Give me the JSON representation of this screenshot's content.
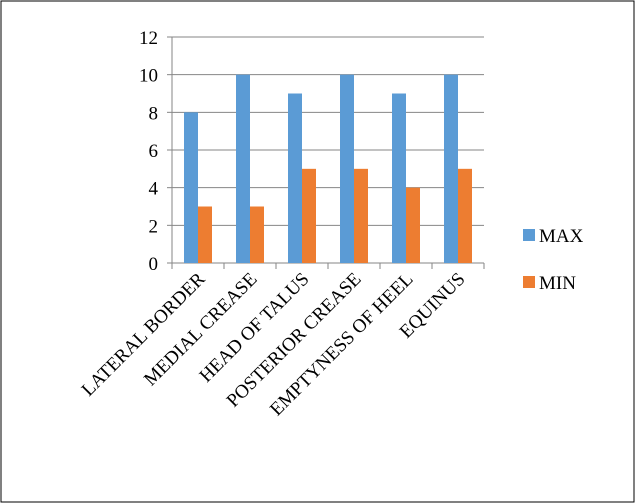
{
  "chart_data": {
    "type": "bar",
    "title": "",
    "xlabel": "",
    "ylabel": "",
    "categories": [
      "LATERAL BORDER",
      "MEDIAL CREASE",
      "HEAD OF TALUS",
      "POSTERIOR CREASE",
      "EMPTYNESS OF HEEL",
      "EQUINUS"
    ],
    "series": [
      {
        "name": "MAX",
        "color": "#5B9BD5",
        "values": [
          8,
          10,
          9,
          10,
          9,
          10
        ]
      },
      {
        "name": "MIN",
        "color": "#ED7D31",
        "values": [
          3,
          3,
          5,
          5,
          4,
          5
        ]
      }
    ],
    "ylim": [
      0,
      12
    ],
    "yticks": [
      0,
      2,
      4,
      6,
      8,
      10,
      12
    ],
    "grid": true,
    "legend_position": "right"
  }
}
